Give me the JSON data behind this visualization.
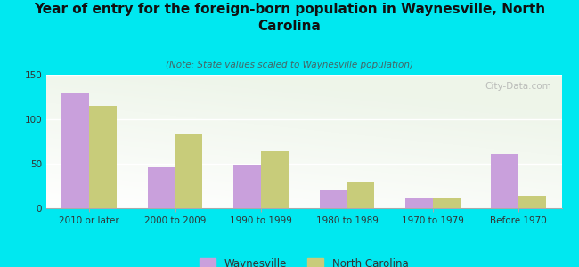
{
  "title": "Year of entry for the foreign-born population in Waynesville, North\nCarolina",
  "subtitle": "(Note: State values scaled to Waynesville population)",
  "categories": [
    "2010 or later",
    "2000 to 2009",
    "1990 to 1999",
    "1980 to 1989",
    "1970 to 1979",
    "Before 1970"
  ],
  "waynesville": [
    130,
    46,
    49,
    21,
    12,
    61
  ],
  "north_carolina": [
    115,
    84,
    64,
    30,
    12,
    14
  ],
  "waynesville_color": "#c9a0dc",
  "nc_color": "#c8cc7a",
  "background_color": "#00e8f0",
  "ylim": [
    0,
    150
  ],
  "yticks": [
    0,
    50,
    100,
    150
  ],
  "legend_labels": [
    "Waynesville",
    "North Carolina"
  ],
  "watermark": "City-Data.com",
  "title_fontsize": 11,
  "subtitle_fontsize": 7.5,
  "tick_fontsize": 7.5,
  "legend_fontsize": 8.5,
  "bar_width": 0.32
}
